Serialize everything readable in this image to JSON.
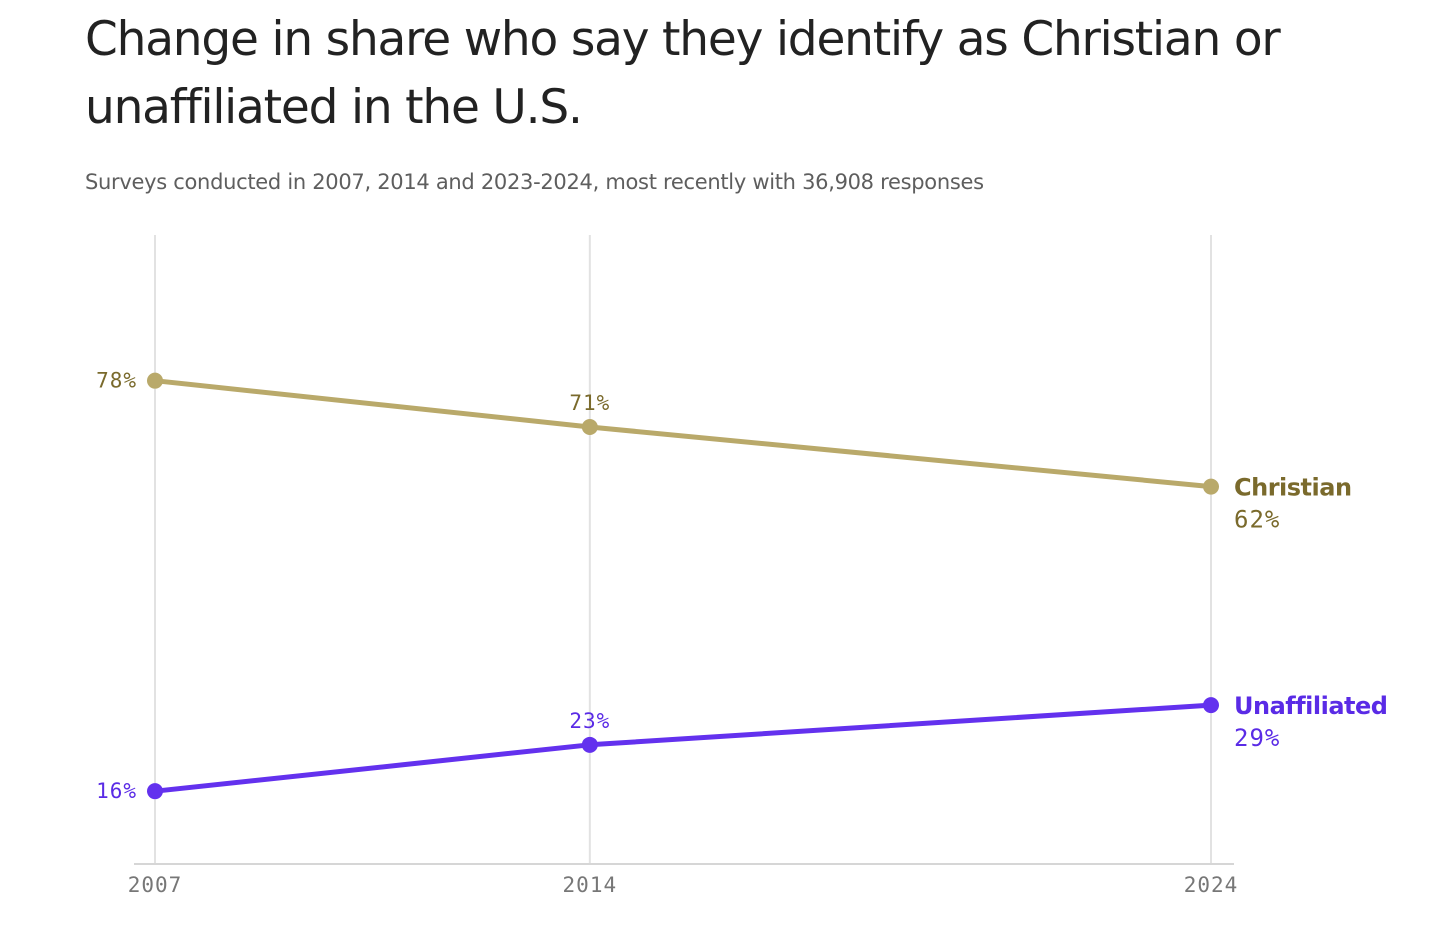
{
  "chart_data": {
    "type": "line",
    "title": "Change in share who say they identify as Christian or unaffiliated in the U.S.",
    "subtitle": "Surveys conducted in 2007, 2014 and 2023-2024, most recently with 36,908 responses",
    "x": [
      2007,
      2014,
      2024
    ],
    "x_tick_labels": [
      "2007",
      "2014",
      "2024"
    ],
    "ylim": [
      5,
      100
    ],
    "grid": "vertical",
    "series": [
      {
        "name": "Christian",
        "values": [
          78,
          71,
          62
        ],
        "point_labels": [
          "78%",
          "71%",
          "62%"
        ],
        "line_color": "#b9a96a",
        "text_color": "#7a6a2c"
      },
      {
        "name": "Unaffiliated",
        "values": [
          16,
          23,
          29
        ],
        "point_labels": [
          "16%",
          "23%",
          "29%"
        ],
        "line_color": "#6331ee",
        "text_color": "#5a2be6"
      }
    ]
  }
}
